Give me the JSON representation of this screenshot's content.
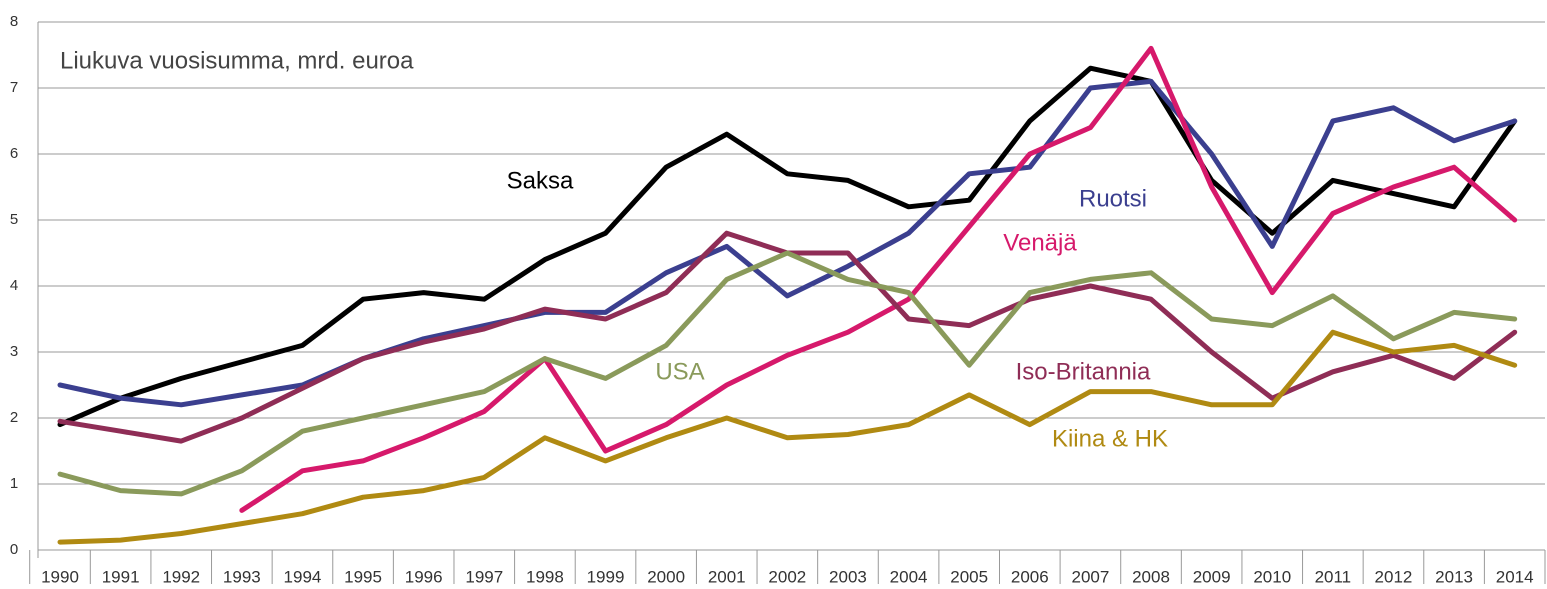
{
  "chart_data": {
    "type": "line",
    "title": "Liukuva vuosisumma, mrd. euroa",
    "categories": [
      "1990",
      "1991",
      "1992",
      "1993",
      "1994",
      "1995",
      "1996",
      "1997",
      "1998",
      "1999",
      "2000",
      "2001",
      "2002",
      "2003",
      "2004",
      "2005",
      "2006",
      "2007",
      "2008",
      "2009",
      "2010",
      "2011",
      "2012",
      "2013",
      "2014"
    ],
    "series": [
      {
        "name": "Saksa",
        "color": "#000000",
        "values": [
          1.9,
          2.3,
          2.6,
          2.85,
          3.1,
          3.8,
          3.9,
          3.8,
          4.4,
          4.8,
          5.8,
          6.3,
          5.7,
          5.6,
          5.2,
          5.3,
          6.5,
          7.3,
          7.1,
          5.6,
          4.8,
          5.6,
          5.4,
          5.2,
          6.5
        ]
      },
      {
        "name": "Ruotsi",
        "color": "#3b3f8f",
        "values": [
          2.5,
          2.3,
          2.2,
          2.35,
          2.5,
          2.9,
          3.2,
          3.4,
          3.6,
          3.6,
          4.2,
          4.6,
          3.85,
          4.3,
          4.8,
          5.7,
          5.8,
          7.0,
          7.1,
          6.0,
          4.6,
          6.5,
          6.7,
          6.2,
          6.5
        ]
      },
      {
        "name": "Venäjä",
        "color": "#d6196b",
        "values": [
          null,
          null,
          null,
          0.6,
          1.2,
          1.35,
          1.7,
          2.1,
          2.9,
          1.5,
          1.9,
          2.5,
          2.95,
          3.3,
          3.8,
          4.9,
          6.0,
          6.4,
          7.6,
          5.5,
          3.9,
          5.1,
          5.5,
          5.8,
          5.0
        ]
      },
      {
        "name": "Iso-Britannia",
        "color": "#8f2d56",
        "values": [
          1.95,
          1.8,
          1.65,
          2.0,
          2.45,
          2.9,
          3.15,
          3.35,
          3.65,
          3.5,
          3.9,
          4.8,
          4.5,
          4.5,
          3.5,
          3.4,
          3.8,
          4.0,
          3.8,
          3.0,
          2.3,
          2.7,
          2.95,
          2.6,
          3.3
        ]
      },
      {
        "name": "USA",
        "color": "#8a9a5b",
        "values": [
          1.15,
          0.9,
          0.85,
          1.2,
          1.8,
          2.0,
          2.2,
          2.4,
          2.9,
          2.6,
          3.1,
          4.1,
          4.5,
          4.1,
          3.9,
          2.8,
          3.9,
          4.1,
          4.2,
          3.5,
          3.4,
          3.85,
          3.2,
          3.6,
          3.5
        ]
      },
      {
        "name": "Kiina & HK",
        "color": "#b08a12",
        "values": [
          0.12,
          0.15,
          0.25,
          0.4,
          0.55,
          0.8,
          0.9,
          1.1,
          1.7,
          1.35,
          1.7,
          2.0,
          1.7,
          1.75,
          1.9,
          2.35,
          1.9,
          2.4,
          2.4,
          2.2,
          2.2,
          3.3,
          3.0,
          3.1,
          2.8
        ]
      }
    ],
    "ylim": [
      0,
      8
    ],
    "yticks": [
      0,
      1,
      2,
      3,
      4,
      5,
      6,
      7,
      8
    ],
    "grid": true
  }
}
